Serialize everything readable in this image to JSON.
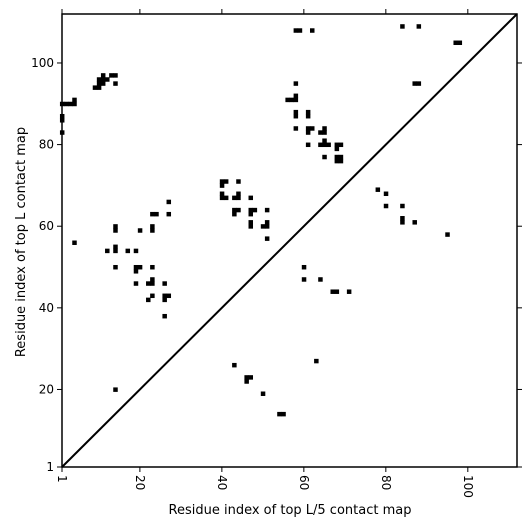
{
  "chart_data": {
    "type": "scatter",
    "title": "",
    "xlabel": "Residue index of top L/5 contact map",
    "ylabel": "Residue index of top L contact map",
    "xlim": [
      1,
      112
    ],
    "ylim": [
      1,
      112
    ],
    "x_ticks": [
      1,
      20,
      40,
      60,
      80,
      100
    ],
    "y_ticks": [
      1,
      20,
      40,
      60,
      80,
      100
    ],
    "x_tick_rotation": 90,
    "diagonal_line": true,
    "marker": "square",
    "color": "#000000",
    "upper_triangle_points": [
      [
        1,
        90
      ],
      [
        2,
        90
      ],
      [
        3,
        90
      ],
      [
        4,
        90
      ],
      [
        1,
        87
      ],
      [
        1,
        86
      ],
      [
        1,
        83
      ],
      [
        4,
        91
      ],
      [
        9,
        94
      ],
      [
        10,
        94
      ],
      [
        10,
        95
      ],
      [
        10,
        96
      ],
      [
        11,
        95
      ],
      [
        11,
        96
      ],
      [
        11,
        97
      ],
      [
        12,
        96
      ],
      [
        13,
        97
      ],
      [
        14,
        97
      ],
      [
        14,
        95
      ],
      [
        4,
        56
      ],
      [
        12,
        54
      ],
      [
        14,
        55
      ],
      [
        14,
        54
      ],
      [
        14,
        50
      ],
      [
        14,
        59
      ],
      [
        14,
        60
      ],
      [
        17,
        54
      ],
      [
        19,
        54
      ],
      [
        19,
        50
      ],
      [
        19,
        49
      ],
      [
        20,
        50
      ],
      [
        19,
        46
      ],
      [
        20,
        59
      ],
      [
        22,
        42
      ],
      [
        22,
        46
      ],
      [
        23,
        46
      ],
      [
        23,
        47
      ],
      [
        23,
        50
      ],
      [
        23,
        43
      ],
      [
        23,
        59
      ],
      [
        23,
        60
      ],
      [
        23,
        63
      ],
      [
        24,
        63
      ],
      [
        26,
        46
      ],
      [
        26,
        43
      ],
      [
        26,
        42
      ],
      [
        26,
        38
      ],
      [
        27,
        43
      ],
      [
        27,
        63
      ],
      [
        27,
        66
      ],
      [
        40,
        67
      ],
      [
        40,
        68
      ],
      [
        40,
        70
      ],
      [
        40,
        71
      ],
      [
        41,
        71
      ],
      [
        41,
        67
      ],
      [
        43,
        67
      ],
      [
        43,
        64
      ],
      [
        43,
        63
      ],
      [
        44,
        64
      ],
      [
        44,
        67
      ],
      [
        44,
        68
      ],
      [
        44,
        71
      ],
      [
        47,
        67
      ],
      [
        47,
        64
      ],
      [
        47,
        63
      ],
      [
        47,
        61
      ],
      [
        47,
        60
      ],
      [
        48,
        64
      ],
      [
        50,
        60
      ],
      [
        51,
        60
      ],
      [
        51,
        61
      ],
      [
        51,
        64
      ],
      [
        51,
        57
      ],
      [
        56,
        91
      ],
      [
        57,
        91
      ],
      [
        58,
        91
      ],
      [
        58,
        92
      ],
      [
        58,
        95
      ],
      [
        58,
        88
      ],
      [
        58,
        87
      ],
      [
        58,
        84
      ],
      [
        58,
        108
      ],
      [
        59,
        108
      ],
      [
        62,
        108
      ],
      [
        61,
        88
      ],
      [
        61,
        87
      ],
      [
        61,
        84
      ],
      [
        61,
        83
      ],
      [
        61,
        80
      ],
      [
        62,
        84
      ],
      [
        64,
        83
      ],
      [
        64,
        80
      ],
      [
        65,
        84
      ],
      [
        65,
        83
      ],
      [
        65,
        81
      ],
      [
        65,
        80
      ],
      [
        65,
        77
      ],
      [
        66,
        80
      ],
      [
        68,
        80
      ],
      [
        68,
        79
      ],
      [
        68,
        77
      ],
      [
        68,
        76
      ],
      [
        69,
        77
      ],
      [
        69,
        76
      ],
      [
        69,
        80
      ],
      [
        84,
        109
      ],
      [
        88,
        109
      ],
      [
        87,
        95
      ],
      [
        88,
        95
      ],
      [
        97,
        105
      ],
      [
        98,
        105
      ]
    ],
    "lower_triangle_points": [
      [
        78,
        69
      ],
      [
        80,
        68
      ],
      [
        80,
        65
      ],
      [
        84,
        65
      ],
      [
        84,
        62
      ],
      [
        84,
        61
      ],
      [
        87,
        61
      ],
      [
        95,
        58
      ],
      [
        60,
        50
      ],
      [
        60,
        47
      ],
      [
        64,
        47
      ],
      [
        67,
        44
      ],
      [
        68,
        44
      ],
      [
        71,
        44
      ],
      [
        43,
        26
      ],
      [
        46,
        23
      ],
      [
        47,
        23
      ],
      [
        46,
        22
      ],
      [
        50,
        19
      ],
      [
        54,
        14
      ],
      [
        55,
        14
      ],
      [
        63,
        27
      ],
      [
        14,
        20
      ]
    ]
  }
}
